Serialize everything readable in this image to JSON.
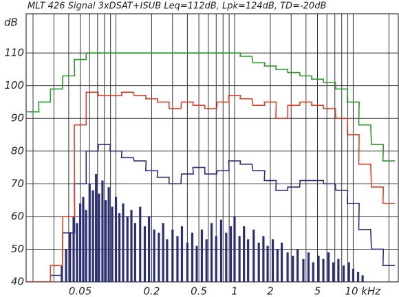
{
  "chart_data": {
    "type": "line",
    "title": "MLT 426  Signal 3xDSAT+ISUB Leq=112dB,  Lpk=124dB,  TD=-20dB",
    "y_label": "dB",
    "x_scale": "log",
    "xlim": [
      0.0175,
      24
    ],
    "ylim": [
      40,
      122
    ],
    "xticks": [
      0.05,
      0.2,
      0.5,
      1,
      2,
      5,
      {
        "value": 10,
        "label": "10 kHz"
      }
    ],
    "minor_xgrid": [
      0.02,
      0.03,
      0.04,
      0.06,
      0.07,
      0.08,
      0.09,
      0.1,
      0.3,
      0.4,
      0.6,
      0.7,
      0.8,
      0.9,
      3,
      4,
      6,
      7,
      8,
      9,
      20
    ],
    "yticks": [
      40,
      50,
      60,
      70,
      80,
      90,
      100,
      110
    ],
    "grid": true,
    "x": [
      0.02,
      0.025,
      0.0315,
      0.04,
      0.05,
      0.063,
      0.08,
      0.1,
      0.125,
      0.16,
      0.2,
      0.25,
      0.315,
      0.4,
      0.5,
      0.63,
      0.8,
      1,
      1.25,
      1.6,
      2,
      2.5,
      3.15,
      4,
      5,
      6.3,
      8,
      10,
      12.5,
      16,
      20
    ],
    "series": [
      {
        "style": "step",
        "color": "#2a9a2a",
        "values": [
          92,
          95,
          99,
          103,
          108,
          110,
          110,
          110,
          110,
          110,
          110,
          110,
          110,
          110,
          110,
          110,
          110,
          110,
          109,
          107,
          106,
          105,
          104,
          103,
          102,
          101,
          99,
          95,
          88,
          82,
          77
        ]
      },
      {
        "style": "step",
        "color": "#d8432a",
        "values": [
          40,
          40,
          45,
          60,
          88,
          98,
          97,
          97,
          98,
          97,
          96,
          95,
          93,
          95,
          94,
          93,
          95,
          97,
          96,
          94,
          95,
          90,
          94,
          95,
          94,
          93,
          90,
          85,
          76,
          69,
          64
        ]
      },
      {
        "style": "step",
        "color": "#2b2f7a",
        "values": [
          40,
          40,
          42,
          55,
          70,
          80,
          82,
          80,
          78,
          77,
          74,
          72,
          70,
          73,
          75,
          73,
          74,
          77,
          76,
          74,
          71,
          68,
          69,
          71,
          71,
          70,
          68,
          64,
          56,
          50,
          45
        ]
      },
      {
        "style": "spikes",
        "color": "#2b2f7a",
        "x": [
          0.035,
          0.038,
          0.041,
          0.044,
          0.047,
          0.05,
          0.053,
          0.056,
          0.06,
          0.064,
          0.068,
          0.072,
          0.077,
          0.082,
          0.087,
          0.093,
          0.1,
          0.107,
          0.115,
          0.125,
          0.135,
          0.145,
          0.16,
          0.175,
          0.19,
          0.21,
          0.23,
          0.25,
          0.27,
          0.3,
          0.33,
          0.36,
          0.4,
          0.44,
          0.48,
          0.53,
          0.58,
          0.64,
          0.7,
          0.77,
          0.85,
          0.93,
          1.0,
          1.1,
          1.2,
          1.3,
          1.45,
          1.6,
          1.75,
          1.9,
          2.1,
          2.3,
          2.5,
          2.8,
          3.1,
          3.4,
          3.8,
          4.2,
          4.6,
          5.1,
          5.6,
          6.2,
          6.8,
          7.5,
          8.3,
          9.2,
          10,
          11,
          12
        ],
        "values": [
          45,
          50,
          55,
          60,
          58,
          64,
          66,
          62,
          70,
          68,
          73,
          67,
          71,
          65,
          69,
          63,
          66,
          61,
          64,
          60,
          62,
          58,
          63,
          57,
          60,
          56,
          55,
          58,
          53,
          56,
          54,
          57,
          52,
          55,
          51,
          56,
          53,
          58,
          54,
          59,
          55,
          57,
          60,
          54,
          57,
          53,
          56,
          52,
          54,
          51,
          53,
          50,
          52,
          49,
          48,
          50,
          47,
          49,
          46,
          48,
          47,
          49,
          46,
          47,
          45,
          46,
          44,
          43,
          42
        ]
      }
    ]
  }
}
